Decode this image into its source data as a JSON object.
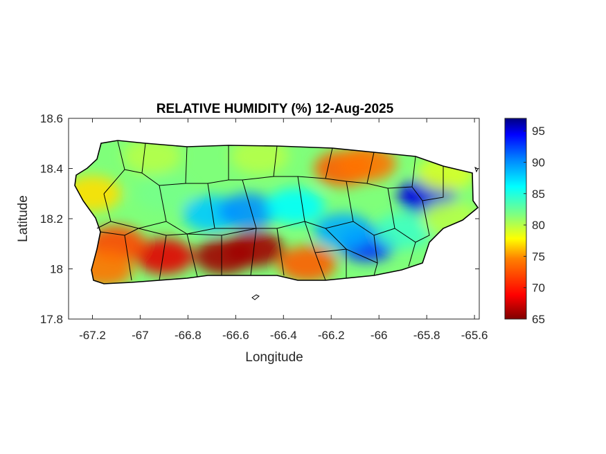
{
  "map": {
    "title": "RELATIVE HUMIDITY (%) 12-Aug-2025",
    "xlabel": "Longitude",
    "ylabel": "Latitude",
    "xlim": [
      -67.3,
      -65.58
    ],
    "ylim": [
      17.8,
      18.6
    ],
    "x_ticks": [
      "-67.2",
      "-67",
      "-66.8",
      "-66.6",
      "-66.4",
      "-66.2",
      "-66",
      "-65.8",
      "-65.6"
    ],
    "x_tick_values": [
      -67.2,
      -67.0,
      -66.8,
      -66.6,
      -66.4,
      -66.2,
      -66.0,
      -65.8,
      -65.6
    ],
    "y_ticks": [
      "17.8",
      "18",
      "18.2",
      "18.4",
      "18.6"
    ],
    "y_tick_values": [
      17.8,
      18.0,
      18.2,
      18.4,
      18.6
    ],
    "region": "Puerto Rico",
    "colorbar": {
      "range": [
        65,
        97
      ],
      "tick_labels": [
        "65",
        "70",
        "75",
        "80",
        "85",
        "90",
        "95"
      ],
      "tick_values": [
        65,
        70,
        75,
        80,
        85,
        90,
        95
      ],
      "colormap": "jet",
      "colors": [
        "#800000",
        "#ff0000",
        "#ff8000",
        "#ffff00",
        "#80ff80",
        "#00ffff",
        "#0080ff",
        "#0000ff",
        "#000080"
      ]
    },
    "humidity_zones": [
      {
        "lon": -66.65,
        "lat": 18.05,
        "value": 66
      },
      {
        "lon": -66.52,
        "lat": 18.08,
        "value": 66
      },
      {
        "lon": -66.9,
        "lat": 18.05,
        "value": 68
      },
      {
        "lon": -67.1,
        "lat": 18.1,
        "value": 72
      },
      {
        "lon": -66.3,
        "lat": 18.02,
        "value": 73
      },
      {
        "lon": -67.15,
        "lat": 18.0,
        "value": 74
      },
      {
        "lon": -66.15,
        "lat": 18.4,
        "value": 73
      },
      {
        "lon": -66.05,
        "lat": 18.42,
        "value": 74
      },
      {
        "lon": -67.2,
        "lat": 18.3,
        "value": 77
      },
      {
        "lon": -66.95,
        "lat": 18.45,
        "value": 80
      },
      {
        "lon": -66.5,
        "lat": 18.45,
        "value": 80
      },
      {
        "lon": -66.9,
        "lat": 18.3,
        "value": 82
      },
      {
        "lon": -66.7,
        "lat": 18.22,
        "value": 88
      },
      {
        "lon": -66.55,
        "lat": 18.23,
        "value": 90
      },
      {
        "lon": -66.35,
        "lat": 18.25,
        "value": 86
      },
      {
        "lon": -66.05,
        "lat": 18.1,
        "value": 93
      },
      {
        "lon": -66.15,
        "lat": 18.15,
        "value": 89
      },
      {
        "lon": -65.9,
        "lat": 18.15,
        "value": 84
      },
      {
        "lon": -65.8,
        "lat": 18.29,
        "value": 95
      },
      {
        "lon": -65.7,
        "lat": 18.2,
        "value": 80
      },
      {
        "lon": -65.72,
        "lat": 18.38,
        "value": 79
      }
    ]
  }
}
